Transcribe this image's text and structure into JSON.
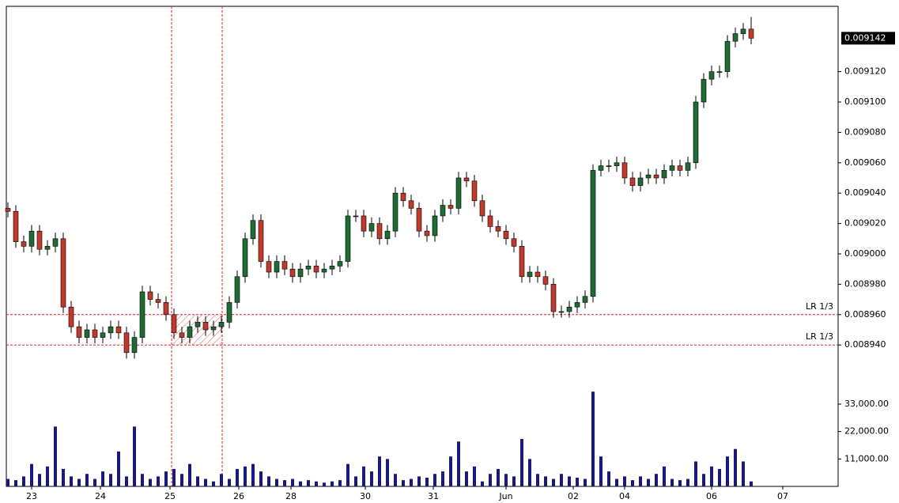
{
  "chart_data": {
    "type": "candlestick",
    "ylim": [
      0.008925,
      0.009163
    ],
    "yticks": [
      {
        "value": 0.00894,
        "label": "0.008940"
      },
      {
        "value": 0.00896,
        "label": "0.008960"
      },
      {
        "value": 0.00898,
        "label": "0.008980"
      },
      {
        "value": 0.009,
        "label": "0.009000"
      },
      {
        "value": 0.00902,
        "label": "0.009020"
      },
      {
        "value": 0.00904,
        "label": "0.009040"
      },
      {
        "value": 0.00906,
        "label": "0.009060"
      },
      {
        "value": 0.00908,
        "label": "0.009080"
      },
      {
        "value": 0.0091,
        "label": "0.009100"
      },
      {
        "value": 0.00912,
        "label": "0.009120"
      }
    ],
    "y2lim": [
      0,
      46000
    ],
    "y2ticks": [
      {
        "value": 11000,
        "label": "11,000.00"
      },
      {
        "value": 22000,
        "label": "22,000.00"
      },
      {
        "value": 33000,
        "label": "33,000.00"
      }
    ],
    "xlim": [
      -0.2,
      105
    ],
    "xticks": [
      {
        "value": 3,
        "label": "23"
      },
      {
        "value": 11.7,
        "label": "24"
      },
      {
        "value": 20.5,
        "label": "25"
      },
      {
        "value": 29.2,
        "label": "26"
      },
      {
        "value": 35.8,
        "label": "28"
      },
      {
        "value": 45.2,
        "label": "30"
      },
      {
        "value": 53.8,
        "label": "31"
      },
      {
        "value": 63,
        "label": "Jun"
      },
      {
        "value": 71.5,
        "label": "02"
      },
      {
        "value": 78,
        "label": "04"
      },
      {
        "value": 89,
        "label": "06"
      },
      {
        "value": 98,
        "label": "07"
      }
    ],
    "up_color": "#1e6b34",
    "down_color": "#c0392b",
    "volume_color": "#1a1a78",
    "hlines": [
      {
        "value": 0.00896,
        "label": "LR 1/3"
      },
      {
        "value": 0.00894,
        "label": "LR 1/3"
      }
    ],
    "vlines": [
      20.7,
      27.1
    ],
    "last_price_label": "0.009142",
    "open": [
      0.00903,
      0.009028,
      0.009008,
      0.009005,
      0.009015,
      0.009003,
      0.009005,
      0.00901,
      0.008965,
      0.008952,
      0.008945,
      0.00895,
      0.008945,
      0.008948,
      0.008952,
      0.008948,
      0.008935,
      0.008945,
      0.008975,
      0.00897,
      0.008968,
      0.00896,
      0.008948,
      0.008945,
      0.008952,
      0.008955,
      0.00895,
      0.008952,
      0.008955,
      0.008968,
      0.008985,
      0.00901,
      0.009022,
      0.008995,
      0.008988,
      0.008995,
      0.00899,
      0.008985,
      0.00899,
      0.008992,
      0.008988,
      0.00899,
      0.008992,
      0.008995,
      0.009025,
      0.009025,
      0.009015,
      0.00902,
      0.00901,
      0.009015,
      0.00904,
      0.009035,
      0.00903,
      0.009015,
      0.009012,
      0.009025,
      0.009032,
      0.00903,
      0.00905,
      0.009048,
      0.009035,
      0.009025,
      0.009018,
      0.009015,
      0.00901,
      0.009005,
      0.008985,
      0.008988,
      0.008985,
      0.00898,
      0.008962,
      0.008962,
      0.008965,
      0.008968,
      0.008972,
      0.009055,
      0.009058,
      0.009058,
      0.00906,
      0.00905,
      0.009045,
      0.00905,
      0.009052,
      0.00905,
      0.009055,
      0.009058,
      0.009055,
      0.00906,
      0.0091,
      0.009115,
      0.00912,
      0.00912,
      0.00914,
      0.009145,
      0.009148
    ],
    "high": [
      0.009034,
      0.009032,
      0.009012,
      0.009019,
      0.009019,
      0.009009,
      0.009014,
      0.009014,
      0.008969,
      0.008956,
      0.008954,
      0.008954,
      0.008952,
      0.008956,
      0.008956,
      0.008952,
      0.008949,
      0.008979,
      0.008979,
      0.008974,
      0.008972,
      0.008964,
      0.008952,
      0.008956,
      0.008959,
      0.008959,
      0.008956,
      0.008959,
      0.008972,
      0.008989,
      0.009014,
      0.009026,
      0.009026,
      0.008999,
      0.008999,
      0.008999,
      0.008994,
      0.008994,
      0.008996,
      0.008996,
      0.008994,
      0.008996,
      0.008999,
      0.009029,
      0.009029,
      0.009029,
      0.009024,
      0.009024,
      0.009019,
      0.009044,
      0.009044,
      0.009039,
      0.009034,
      0.009019,
      0.009029,
      0.009036,
      0.009036,
      0.009054,
      0.009054,
      0.009052,
      0.009039,
      0.009029,
      0.009022,
      0.009019,
      0.009014,
      0.009009,
      0.008992,
      0.008992,
      0.008989,
      0.008984,
      0.008966,
      0.008969,
      0.008972,
      0.008976,
      0.009059,
      0.009062,
      0.009062,
      0.009064,
      0.009064,
      0.009054,
      0.009054,
      0.009056,
      0.009056,
      0.009059,
      0.009062,
      0.009062,
      0.009064,
      0.009104,
      0.009119,
      0.009124,
      0.009124,
      0.009144,
      0.009149,
      0.009152,
      0.009156
    ],
    "low": [
      0.009024,
      0.009004,
      0.009001,
      0.009001,
      0.008999,
      0.008999,
      0.009001,
      0.008961,
      0.008948,
      0.008941,
      0.008941,
      0.008941,
      0.008941,
      0.008944,
      0.008944,
      0.008931,
      0.008931,
      0.008941,
      0.008966,
      0.008964,
      0.008956,
      0.008944,
      0.008941,
      0.008941,
      0.008948,
      0.008946,
      0.008946,
      0.008948,
      0.008951,
      0.008964,
      0.008981,
      0.009006,
      0.008991,
      0.008984,
      0.008984,
      0.008986,
      0.008981,
      0.008981,
      0.008986,
      0.008984,
      0.008984,
      0.008986,
      0.008988,
      0.008991,
      0.009021,
      0.009011,
      0.009011,
      0.009006,
      0.009006,
      0.009011,
      0.009031,
      0.009026,
      0.009011,
      0.009008,
      0.009008,
      0.009021,
      0.009026,
      0.009026,
      0.009044,
      0.009031,
      0.009021,
      0.009014,
      0.009011,
      0.009006,
      0.009001,
      0.008981,
      0.008981,
      0.008981,
      0.008976,
      0.008958,
      0.008958,
      0.008958,
      0.008961,
      0.008964,
      0.008968,
      0.009051,
      0.009054,
      0.009054,
      0.009046,
      0.009041,
      0.009041,
      0.009046,
      0.009046,
      0.009046,
      0.009051,
      0.009051,
      0.009051,
      0.009056,
      0.009096,
      0.009111,
      0.009116,
      0.009116,
      0.009136,
      0.009141,
      0.009138
    ],
    "close": [
      0.009028,
      0.009008,
      0.009005,
      0.009015,
      0.009003,
      0.009005,
      0.00901,
      0.008965,
      0.008952,
      0.008945,
      0.00895,
      0.008945,
      0.008948,
      0.008952,
      0.008948,
      0.008935,
      0.008945,
      0.008975,
      0.00897,
      0.008968,
      0.00896,
      0.008948,
      0.008945,
      0.008952,
      0.008955,
      0.00895,
      0.008952,
      0.008955,
      0.008968,
      0.008985,
      0.00901,
      0.009022,
      0.008995,
      0.008988,
      0.008995,
      0.00899,
      0.008985,
      0.00899,
      0.008992,
      0.008988,
      0.00899,
      0.008992,
      0.008995,
      0.009025,
      0.009025,
      0.009015,
      0.00902,
      0.00901,
      0.009015,
      0.00904,
      0.009035,
      0.00903,
      0.009015,
      0.009012,
      0.009025,
      0.009032,
      0.00903,
      0.00905,
      0.009048,
      0.009035,
      0.009025,
      0.009018,
      0.009015,
      0.00901,
      0.009005,
      0.008985,
      0.008988,
      0.008985,
      0.00898,
      0.008962,
      0.008962,
      0.008965,
      0.008968,
      0.008972,
      0.009055,
      0.009058,
      0.009058,
      0.00906,
      0.00905,
      0.009045,
      0.00905,
      0.009052,
      0.00905,
      0.009055,
      0.009058,
      0.009055,
      0.00906,
      0.0091,
      0.009115,
      0.00912,
      0.00912,
      0.00914,
      0.009145,
      0.009148,
      0.009142
    ],
    "volume": [
      3000,
      2500,
      4000,
      9000,
      5000,
      8000,
      24000,
      7000,
      4000,
      3000,
      5000,
      3000,
      6000,
      5000,
      14000,
      4000,
      24000,
      5000,
      3000,
      4000,
      6000,
      7000,
      5000,
      9000,
      4000,
      3000,
      2000,
      5000,
      3000,
      7000,
      8000,
      9000,
      6000,
      4000,
      3000,
      2500,
      3000,
      2000,
      2500,
      2000,
      1500,
      2000,
      2500,
      9000,
      4000,
      8000,
      6000,
      12000,
      11000,
      5000,
      2500,
      3000,
      4000,
      3500,
      5000,
      6000,
      12000,
      18000,
      6000,
      8000,
      2000,
      5000,
      7000,
      5000,
      4000,
      19000,
      11000,
      5000,
      4000,
      3000,
      5000,
      4000,
      3500,
      3000,
      38000,
      12000,
      6000,
      3000,
      4000,
      2500,
      4000,
      3000,
      5000,
      8000,
      3000,
      2500,
      3000,
      10000,
      5000,
      8000,
      7000,
      12000,
      15000,
      10000,
      2000
    ]
  }
}
